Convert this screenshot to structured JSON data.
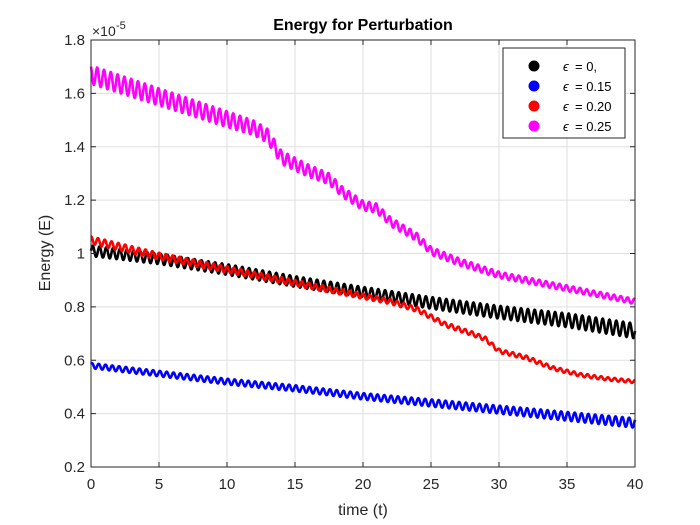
{
  "chart_data": {
    "type": "line",
    "title": "Energy for Perturbation",
    "xlabel": "time (t)",
    "ylabel": "Energy (E)",
    "y_exponent_base": "×10",
    "y_exponent_power": "-5",
    "xlim": [
      0,
      40
    ],
    "ylim": [
      0.2,
      1.8
    ],
    "x_ticks": [
      0,
      5,
      10,
      15,
      20,
      25,
      30,
      35,
      40
    ],
    "x_tick_labels": [
      "0",
      "5",
      "10",
      "15",
      "20",
      "25",
      "30",
      "35",
      "40"
    ],
    "y_ticks": [
      0.2,
      0.4,
      0.6,
      0.8,
      1.0,
      1.2,
      1.4,
      1.6,
      1.8
    ],
    "y_tick_labels": [
      "0.2",
      "0.4",
      "0.6",
      "0.8",
      "1",
      "1.2",
      "1.4",
      "1.6",
      "1.8"
    ],
    "grid": true,
    "legend_position": "top-right",
    "oscillation_period": 0.5,
    "series": [
      {
        "name": "ε = 0,",
        "legend_prefix": "ϵ",
        "legend_suffix": "= 0,",
        "color": "#000000",
        "trend": [
          [
            0,
            1.01
          ],
          [
            5,
            0.98
          ],
          [
            10,
            0.94
          ],
          [
            15,
            0.895
          ],
          [
            20,
            0.855
          ],
          [
            25,
            0.815
          ],
          [
            30,
            0.78
          ],
          [
            35,
            0.75
          ],
          [
            40,
            0.71
          ]
        ],
        "amplitude": [
          [
            0,
            0.02
          ],
          [
            20,
            0.02
          ],
          [
            40,
            0.028
          ]
        ]
      },
      {
        "name": "ε = 0.15",
        "legend_prefix": "ϵ",
        "legend_suffix": "= 0.15",
        "color": "#0000ff",
        "trend": [
          [
            0,
            0.58
          ],
          [
            5,
            0.55
          ],
          [
            10,
            0.52
          ],
          [
            15,
            0.495
          ],
          [
            20,
            0.465
          ],
          [
            25,
            0.44
          ],
          [
            30,
            0.415
          ],
          [
            35,
            0.39
          ],
          [
            40,
            0.365
          ]
        ],
        "amplitude": [
          [
            0,
            0.01
          ],
          [
            20,
            0.012
          ],
          [
            40,
            0.018
          ]
        ]
      },
      {
        "name": "ε = 0.20",
        "legend_prefix": "ϵ",
        "legend_suffix": "= 0.20",
        "color": "#ff0000",
        "trend": [
          [
            0,
            1.05
          ],
          [
            5,
            0.99
          ],
          [
            10,
            0.94
          ],
          [
            15,
            0.89
          ],
          [
            20,
            0.84
          ],
          [
            22,
            0.82
          ],
          [
            24,
            0.79
          ],
          [
            26,
            0.735
          ],
          [
            28,
            0.7
          ],
          [
            29,
            0.68
          ],
          [
            30,
            0.635
          ],
          [
            32,
            0.61
          ],
          [
            34,
            0.57
          ],
          [
            36,
            0.545
          ],
          [
            38,
            0.53
          ],
          [
            40,
            0.52
          ]
        ],
        "amplitude": [
          [
            0,
            0.014
          ],
          [
            20,
            0.01
          ],
          [
            40,
            0.006
          ]
        ]
      },
      {
        "name": "ε = 0.25",
        "legend_prefix": "ϵ",
        "legend_suffix": "= 0.25",
        "color": "#ff00ff",
        "trend": [
          [
            0,
            1.67
          ],
          [
            3,
            1.62
          ],
          [
            6,
            1.57
          ],
          [
            9,
            1.52
          ],
          [
            12,
            1.47
          ],
          [
            13,
            1.44
          ],
          [
            14,
            1.36
          ],
          [
            16,
            1.31
          ],
          [
            17.5,
            1.28
          ],
          [
            18.5,
            1.23
          ],
          [
            20,
            1.18
          ],
          [
            21,
            1.17
          ],
          [
            22,
            1.12
          ],
          [
            24,
            1.06
          ],
          [
            25,
            1.01
          ],
          [
            27,
            0.97
          ],
          [
            30,
            0.92
          ],
          [
            35,
            0.87
          ],
          [
            40,
            0.82
          ]
        ],
        "amplitude": [
          [
            0,
            0.035
          ],
          [
            10,
            0.03
          ],
          [
            20,
            0.018
          ],
          [
            30,
            0.012
          ],
          [
            40,
            0.01
          ]
        ]
      }
    ]
  }
}
